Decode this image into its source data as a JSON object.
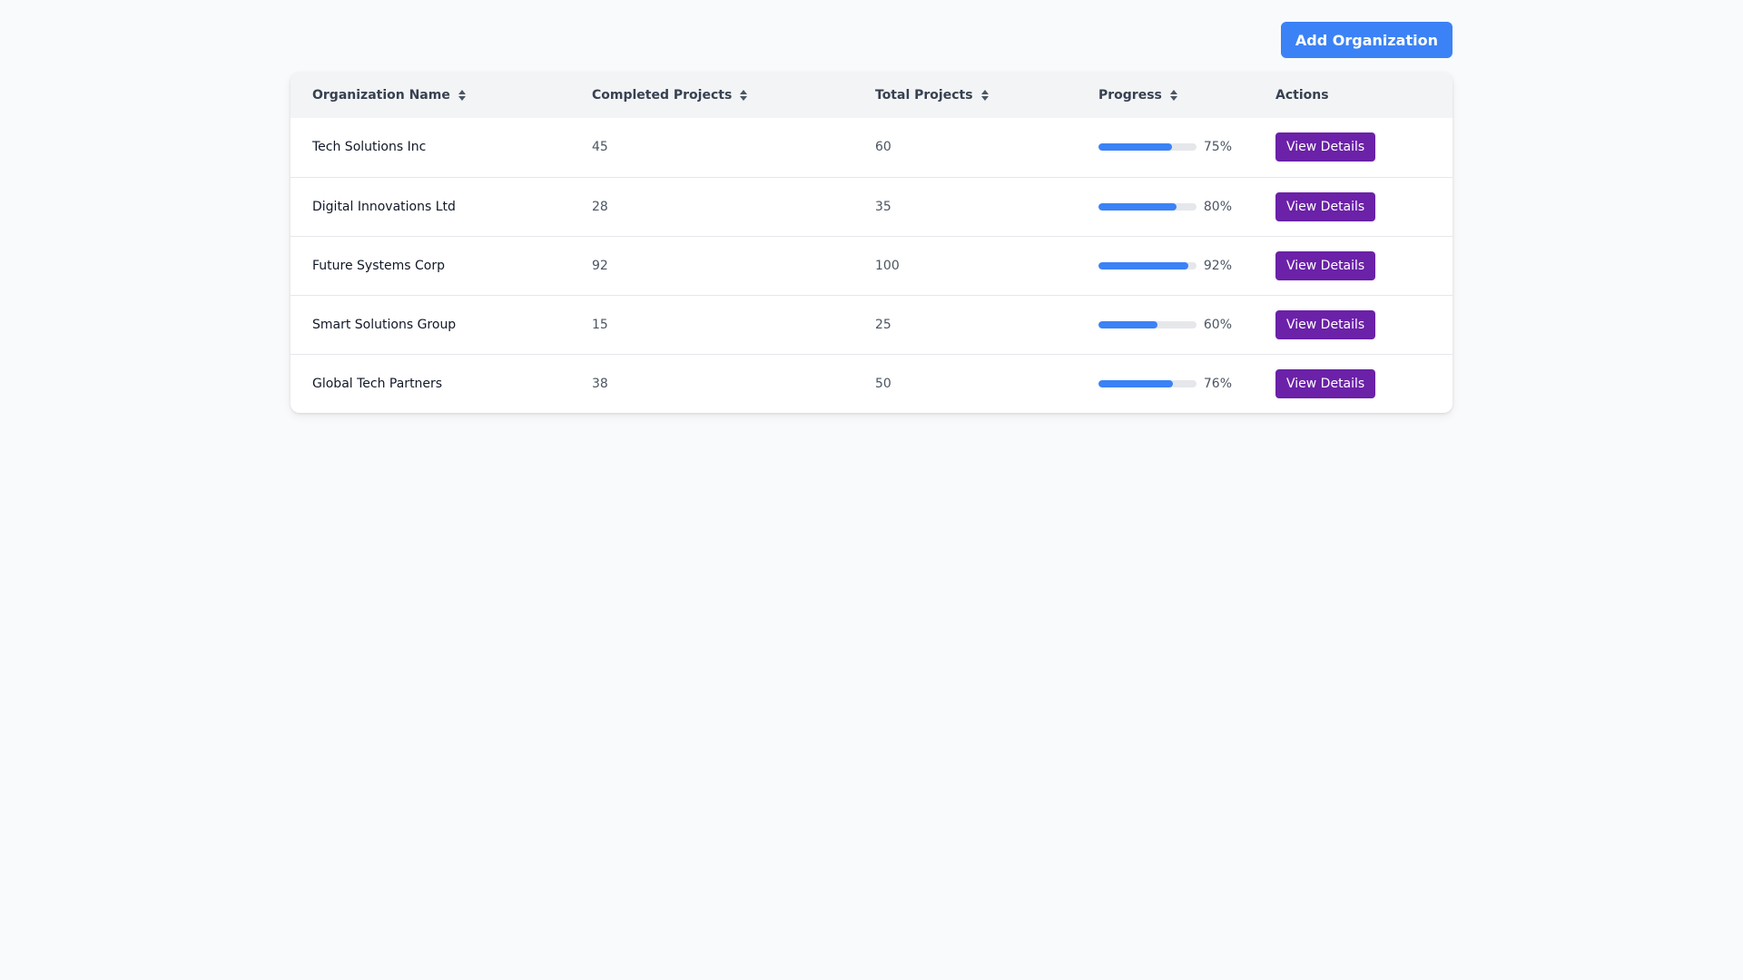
{
  "toolbar": {
    "add_label": "Add Organization"
  },
  "colors": {
    "primary": "#3b82f6",
    "action": "#6b21a8",
    "track": "#e5e7eb",
    "background": "#f9fafb"
  },
  "table": {
    "columns": [
      {
        "label": "Organization Name",
        "sortable": true,
        "icon": "sort-icon"
      },
      {
        "label": "Completed Projects",
        "sortable": true,
        "icon": "sort-icon"
      },
      {
        "label": "Total Projects",
        "sortable": true,
        "icon": "sort-icon"
      },
      {
        "label": "Progress",
        "sortable": true,
        "icon": "sort-icon"
      },
      {
        "label": "Actions",
        "sortable": false
      }
    ],
    "rows": [
      {
        "name": "Tech Solutions Inc",
        "completed": "45",
        "total": "60",
        "progress": 75,
        "progress_label": "75%",
        "action": "View Details"
      },
      {
        "name": "Digital Innovations Ltd",
        "completed": "28",
        "total": "35",
        "progress": 80,
        "progress_label": "80%",
        "action": "View Details"
      },
      {
        "name": "Future Systems Corp",
        "completed": "92",
        "total": "100",
        "progress": 92,
        "progress_label": "92%",
        "action": "View Details"
      },
      {
        "name": "Smart Solutions Group",
        "completed": "15",
        "total": "25",
        "progress": 60,
        "progress_label": "60%",
        "action": "View Details"
      },
      {
        "name": "Global Tech Partners",
        "completed": "38",
        "total": "50",
        "progress": 76,
        "progress_label": "76%",
        "action": "View Details"
      }
    ]
  }
}
